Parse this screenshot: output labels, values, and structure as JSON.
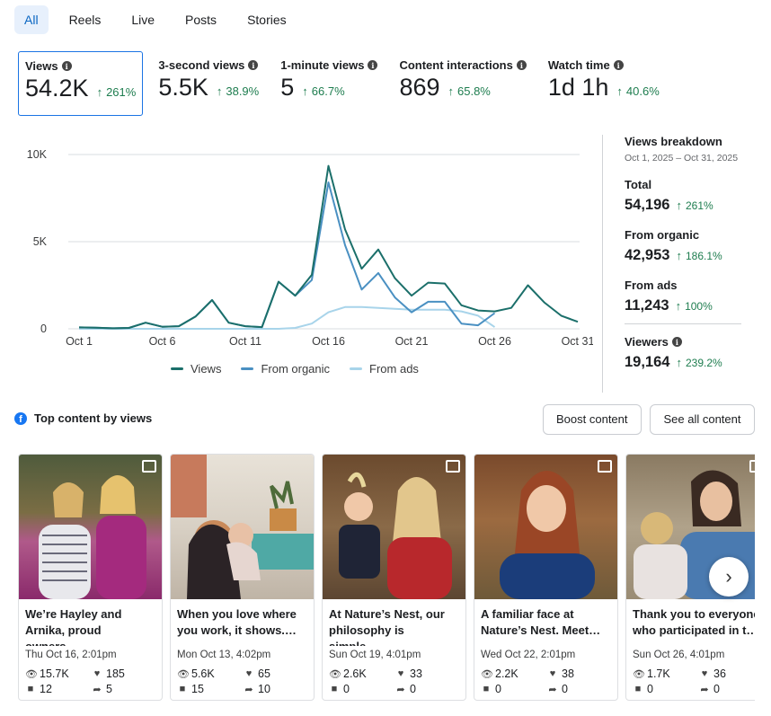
{
  "tabs": [
    {
      "label": "All",
      "active": true
    },
    {
      "label": "Reels"
    },
    {
      "label": "Live"
    },
    {
      "label": "Posts"
    },
    {
      "label": "Stories"
    }
  ],
  "metrics": [
    {
      "label": "Views",
      "value": "54.2K",
      "change": "261%",
      "selected": true
    },
    {
      "label": "3-second views",
      "value": "5.5K",
      "change": "38.9%"
    },
    {
      "label": "1-minute views",
      "value": "5",
      "change": "66.7%"
    },
    {
      "label": "Content interactions",
      "value": "869",
      "change": "65.8%"
    },
    {
      "label": "Watch time",
      "value": "1d 1h",
      "change": "40.6%"
    }
  ],
  "chart_data": {
    "type": "line",
    "x": [
      "Oct 1",
      "Oct 2",
      "Oct 3",
      "Oct 4",
      "Oct 5",
      "Oct 6",
      "Oct 7",
      "Oct 8",
      "Oct 9",
      "Oct 10",
      "Oct 11",
      "Oct 12",
      "Oct 13",
      "Oct 14",
      "Oct 15",
      "Oct 16",
      "Oct 17",
      "Oct 18",
      "Oct 19",
      "Oct 20",
      "Oct 21",
      "Oct 22",
      "Oct 23",
      "Oct 24",
      "Oct 25",
      "Oct 26",
      "Oct 27",
      "Oct 28",
      "Oct 29",
      "Oct 30",
      "Oct 31"
    ],
    "x_ticks": [
      "Oct 1",
      "Oct 6",
      "Oct 11",
      "Oct 16",
      "Oct 21",
      "Oct 26",
      "Oct 31"
    ],
    "y_ticks": [
      "0",
      "5K",
      "10K"
    ],
    "ylim": [
      0,
      10000
    ],
    "grid": true,
    "legend": "bottom",
    "series": [
      {
        "name": "Views",
        "color": "#1b6f6a",
        "values": [
          80,
          60,
          30,
          50,
          350,
          120,
          150,
          700,
          1650,
          350,
          150,
          100,
          2700,
          1900,
          3100,
          9350,
          5700,
          3450,
          4550,
          2900,
          1900,
          2650,
          2600,
          1350,
          1050,
          1000,
          1200,
          2500,
          1500,
          750,
          400
        ]
      },
      {
        "name": "From organic",
        "color": "#4a90c2",
        "values": [
          80,
          60,
          30,
          50,
          350,
          120,
          150,
          700,
          1650,
          350,
          150,
          100,
          2700,
          1900,
          2800,
          8400,
          4800,
          2250,
          3200,
          1800,
          950,
          1550,
          1550,
          300,
          200,
          900,
          null,
          null,
          null,
          null,
          null
        ]
      },
      {
        "name": "From ads",
        "color": "#a8d4ea",
        "values": [
          0,
          0,
          0,
          0,
          0,
          0,
          0,
          0,
          0,
          0,
          0,
          0,
          0,
          50,
          300,
          950,
          1250,
          1250,
          1200,
          1150,
          1100,
          1100,
          1100,
          1000,
          750,
          100,
          null,
          null,
          null,
          null,
          null
        ]
      }
    ]
  },
  "breakdown": {
    "title": "Views breakdown",
    "dates": "Oct 1, 2025 – Oct 31, 2025",
    "items": [
      {
        "label": "Total",
        "value": "54,196",
        "change": "261%"
      },
      {
        "label": "From organic",
        "value": "42,953",
        "change": "186.1%"
      },
      {
        "label": "From ads",
        "value": "11,243",
        "change": "100%"
      },
      {
        "label": "Viewers",
        "value": "19,164",
        "change": "239.2%",
        "info": true
      }
    ]
  },
  "top_content": {
    "title": "Top content by views",
    "boost_label": "Boost content",
    "see_all_label": "See all content",
    "cards": [
      {
        "title": "We’re Hayley and Arnika, proud owners…",
        "date": "Thu Oct 16, 2:01pm",
        "views": "15.7K",
        "reactions": "185",
        "comments": "12",
        "shares": "5",
        "type_icon": "photo-icon"
      },
      {
        "title": "When you love where you work, it shows.…",
        "date": "Mon Oct 13, 4:02pm",
        "views": "5.6K",
        "reactions": "65",
        "comments": "15",
        "shares": "10",
        "type_icon": ""
      },
      {
        "title": "At Nature’s Nest, our philosophy is simple,…",
        "date": "Sun Oct 19, 4:01pm",
        "views": "2.6K",
        "reactions": "33",
        "comments": "0",
        "shares": "0",
        "type_icon": "album-icon"
      },
      {
        "title": "A familiar face at Nature’s Nest. Meet…",
        "date": "Wed Oct 22, 2:01pm",
        "views": "2.2K",
        "reactions": "38",
        "comments": "0",
        "shares": "0",
        "type_icon": "photo-icon"
      },
      {
        "title": "Thank you to everyone who participated in t…",
        "date": "Sun Oct 26, 4:01pm",
        "views": "1.7K",
        "reactions": "36",
        "comments": "0",
        "shares": "0",
        "type_icon": "photo-icon"
      }
    ]
  },
  "colors": {
    "accent": "#1b74e4",
    "positive": "#1e7d4f",
    "tab_active_bg": "#e7f0fc"
  }
}
